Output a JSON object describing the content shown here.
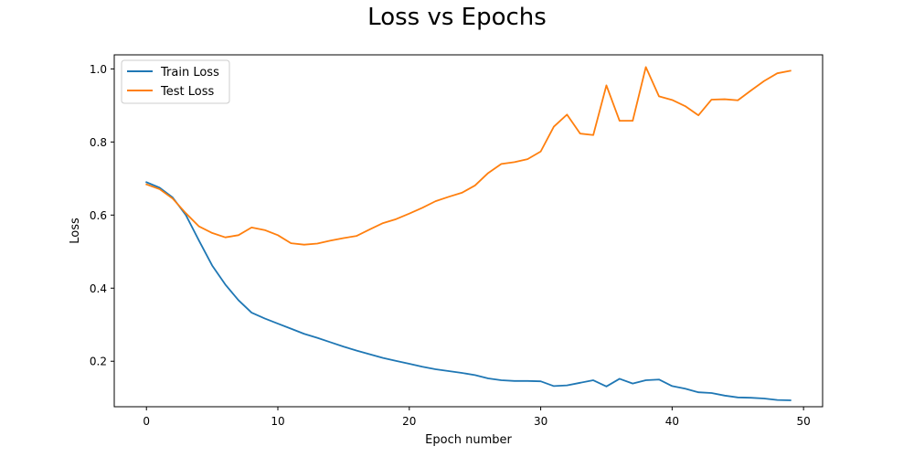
{
  "chart_data": {
    "type": "line",
    "title": "Loss vs Epochs",
    "xlabel": "Epoch number",
    "ylabel": "Loss",
    "xlim": [
      -2.45,
      51.45
    ],
    "ylim": [
      0.0755,
      1.0385
    ],
    "xticks": [
      0,
      10,
      20,
      30,
      40,
      50
    ],
    "xtick_labels": [
      "0",
      "10",
      "20",
      "30",
      "40",
      "50"
    ],
    "yticks": [
      0.2,
      0.4,
      0.6,
      0.8,
      1.0
    ],
    "ytick_labels": [
      "0.2",
      "0.4",
      "0.6",
      "0.8",
      "1.0"
    ],
    "grid": false,
    "legend_position": "upper-left",
    "x": [
      0,
      1,
      2,
      3,
      4,
      5,
      6,
      7,
      8,
      9,
      10,
      11,
      12,
      13,
      14,
      15,
      16,
      17,
      18,
      19,
      20,
      21,
      22,
      23,
      24,
      25,
      26,
      27,
      28,
      29,
      30,
      31,
      32,
      33,
      34,
      35,
      36,
      37,
      38,
      39,
      40,
      41,
      42,
      43,
      44,
      45,
      46,
      47,
      48,
      49
    ],
    "series": [
      {
        "name": "Train Loss",
        "color": "#1f77b4",
        "values": [
          0.69,
          0.675,
          0.648,
          0.6,
          0.53,
          0.462,
          0.41,
          0.367,
          0.333,
          0.317,
          0.303,
          0.289,
          0.275,
          0.264,
          0.252,
          0.24,
          0.229,
          0.219,
          0.209,
          0.201,
          0.193,
          0.185,
          0.178,
          0.173,
          0.168,
          0.162,
          0.153,
          0.148,
          0.146,
          0.146,
          0.145,
          0.132,
          0.134,
          0.141,
          0.148,
          0.131,
          0.152,
          0.139,
          0.148,
          0.15,
          0.132,
          0.125,
          0.115,
          0.113,
          0.106,
          0.101,
          0.1,
          0.098,
          0.094,
          0.093
        ]
      },
      {
        "name": "Test Loss",
        "color": "#ff7f0e",
        "values": [
          0.684,
          0.671,
          0.645,
          0.605,
          0.569,
          0.551,
          0.539,
          0.545,
          0.566,
          0.559,
          0.545,
          0.523,
          0.519,
          0.522,
          0.53,
          0.537,
          0.543,
          0.561,
          0.578,
          0.589,
          0.604,
          0.62,
          0.638,
          0.65,
          0.661,
          0.681,
          0.715,
          0.74,
          0.745,
          0.753,
          0.774,
          0.842,
          0.875,
          0.823,
          0.819,
          0.955,
          0.858,
          0.858,
          1.005,
          0.925,
          0.915,
          0.898,
          0.873,
          0.916,
          0.917,
          0.914,
          0.941,
          0.967,
          0.988,
          0.995
        ]
      }
    ]
  }
}
